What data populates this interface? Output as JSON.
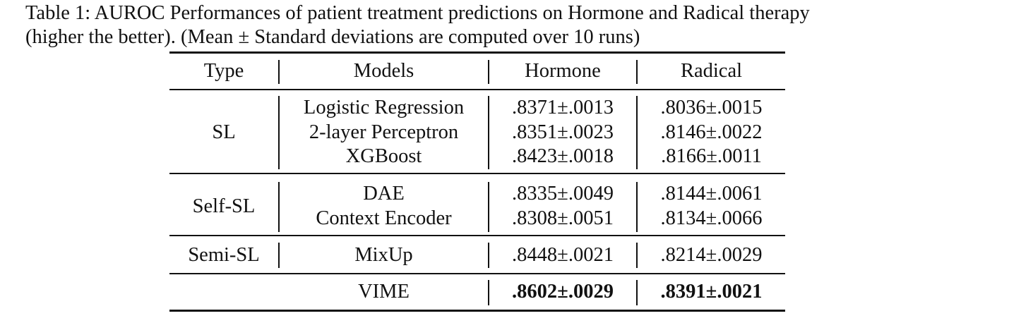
{
  "caption": {
    "line1": "Table 1: AUROC Performances of patient treatment predictions on Hormone and Radical therapy",
    "line2": "(higher the better). (Mean ± Standard deviations are computed over 10 runs)"
  },
  "table": {
    "headers": {
      "type": "Type",
      "models": "Models",
      "hormone": "Hormone",
      "radical": "Radical"
    },
    "groups": [
      {
        "type": "SL",
        "rows": [
          {
            "model": "Logistic Regression",
            "hormone": ".8371±.0013",
            "radical": ".8036±.0015"
          },
          {
            "model": "2-layer Perceptron",
            "hormone": ".8351±.0023",
            "radical": ".8146±.0022"
          },
          {
            "model": "XGBoost",
            "hormone": ".8423±.0018",
            "radical": ".8166±.0011"
          }
        ]
      },
      {
        "type": "Self-SL",
        "rows": [
          {
            "model": "DAE",
            "hormone": ".8335±.0049",
            "radical": ".8144±.0061"
          },
          {
            "model": "Context Encoder",
            "hormone": ".8308±.0051",
            "radical": ".8134±.0066"
          }
        ]
      },
      {
        "type": "Semi-SL",
        "rows": [
          {
            "model": "MixUp",
            "hormone": ".8448±.0021",
            "radical": ".8214±.0029"
          }
        ]
      },
      {
        "type": "",
        "rows": [
          {
            "model": "VIME",
            "hormone": ".8602±.0029",
            "radical": ".8391±.0021"
          }
        ]
      }
    ]
  }
}
